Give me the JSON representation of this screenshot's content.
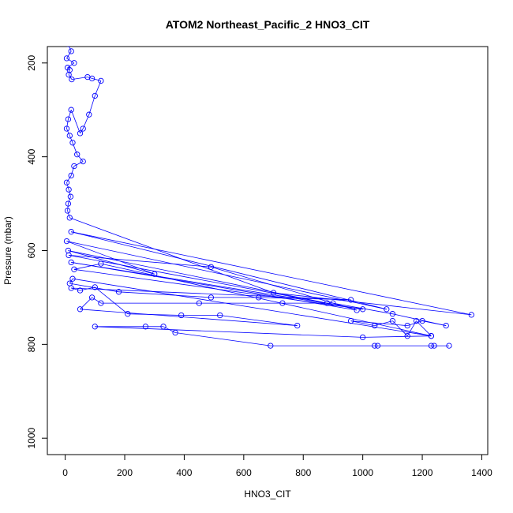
{
  "chart_data": {
    "type": "line",
    "title": "ATOM2 Northeast_Pacific_2 HNO3_CIT",
    "xlabel": "HNO3_CIT",
    "ylabel": "Pressure (mbar)",
    "xlim": [
      -60,
      1420
    ],
    "ylim": [
      1035,
      165
    ],
    "y_reversed": true,
    "grid": false,
    "x_ticks": [
      0,
      200,
      400,
      600,
      800,
      1000,
      1200,
      1400
    ],
    "y_ticks": [
      200,
      400,
      600,
      800,
      1000
    ],
    "colors": {
      "series": "#0000ff",
      "axes": "#000000"
    },
    "series": [
      {
        "points": [
          [
            10,
            160
          ],
          [
            20,
            175
          ],
          [
            5,
            190
          ],
          [
            30,
            200
          ],
          [
            8,
            210
          ],
          [
            15,
            215
          ],
          [
            12,
            225
          ],
          [
            22,
            235
          ],
          [
            75,
            230
          ],
          [
            90,
            233
          ],
          [
            120,
            238
          ],
          [
            100,
            270
          ],
          [
            80,
            310
          ],
          [
            60,
            340
          ],
          [
            50,
            350
          ],
          [
            20,
            300
          ],
          [
            10,
            320
          ],
          [
            5,
            340
          ],
          [
            15,
            355
          ],
          [
            25,
            370
          ],
          [
            40,
            395
          ],
          [
            60,
            410
          ],
          [
            30,
            420
          ],
          [
            20,
            440
          ],
          [
            5,
            455
          ],
          [
            12,
            470
          ],
          [
            18,
            485
          ],
          [
            10,
            500
          ],
          [
            8,
            515
          ],
          [
            15,
            530
          ],
          [
            700,
            690
          ],
          [
            1365,
            737
          ],
          [
            20,
            560
          ],
          [
            1080,
            725
          ],
          [
            5,
            580
          ],
          [
            300,
            650
          ],
          [
            10,
            600
          ],
          [
            880,
            712
          ],
          [
            12,
            610
          ],
          [
            490,
            635
          ],
          [
            980,
            727
          ],
          [
            20,
            625
          ],
          [
            1000,
            725
          ],
          [
            30,
            640
          ],
          [
            120,
            628
          ],
          [
            1230,
            782
          ],
          [
            25,
            660
          ],
          [
            15,
            670
          ],
          [
            180,
            688
          ],
          [
            490,
            700
          ],
          [
            650,
            700
          ],
          [
            960,
            705
          ],
          [
            20,
            680
          ],
          [
            50,
            685
          ],
          [
            100,
            678
          ],
          [
            210,
            735
          ],
          [
            390,
            738
          ],
          [
            520,
            738
          ],
          [
            780,
            760
          ],
          [
            50,
            725
          ],
          [
            90,
            700
          ],
          [
            120,
            712
          ],
          [
            450,
            712
          ],
          [
            730,
            712
          ],
          [
            900,
            712
          ],
          [
            1100,
            735
          ],
          [
            1280,
            760
          ],
          [
            1200,
            750
          ],
          [
            1150,
            760
          ],
          [
            960,
            750
          ],
          [
            1040,
            760
          ],
          [
            1100,
            750
          ],
          [
            1150,
            782
          ],
          [
            1180,
            750
          ],
          [
            1230,
            782
          ],
          [
            1000,
            785
          ],
          [
            100,
            762
          ],
          [
            270,
            762
          ],
          [
            330,
            762
          ],
          [
            370,
            775
          ],
          [
            690,
            803
          ],
          [
            1040,
            803
          ],
          [
            1050,
            803
          ],
          [
            1230,
            803
          ],
          [
            1240,
            803
          ],
          [
            1290,
            803
          ]
        ]
      }
    ]
  }
}
